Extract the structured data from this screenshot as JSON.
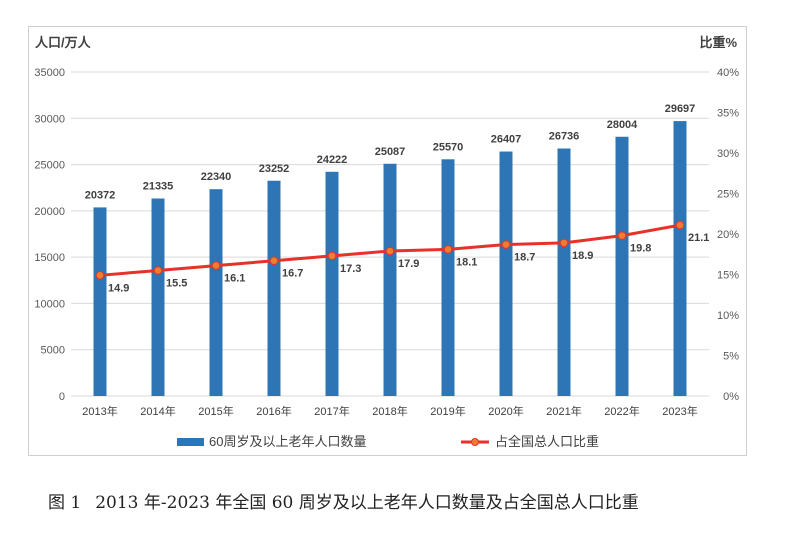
{
  "chart_data": {
    "type": "bar+line",
    "left_axis_title": "人口/万人",
    "right_axis_title": "比重%",
    "categories": [
      "2013年",
      "2014年",
      "2015年",
      "2016年",
      "2017年",
      "2018年",
      "2019年",
      "2020年",
      "2021年",
      "2022年",
      "2023年"
    ],
    "y_left": {
      "min": 0,
      "max": 35000,
      "ticks": [
        "35000",
        "30000",
        "25000",
        "20000",
        "15000",
        "10000",
        "5000",
        "0"
      ]
    },
    "y_right": {
      "min": 0,
      "max": 40,
      "ticks": [
        "40%",
        "35%",
        "30%",
        "25%",
        "20%",
        "15%",
        "10%",
        "5%",
        "0%"
      ]
    },
    "grid": true,
    "legend_position": "bottom",
    "series": [
      {
        "name": "60周岁及以上老年人口数量",
        "type": "bar",
        "axis": "left",
        "color": "#2e75b6",
        "values": [
          20372,
          21335,
          22340,
          23252,
          24222,
          25087,
          25570,
          26407,
          26736,
          28004,
          29697
        ],
        "labels": [
          "20372",
          "21335",
          "22340",
          "23252",
          "24222",
          "25087",
          "25570",
          "26407",
          "26736",
          "28004",
          "29697"
        ]
      },
      {
        "name": "占全国总人口比重",
        "type": "line",
        "axis": "right",
        "color": "#e63228",
        "marker_color": "#ed7d31",
        "values": [
          14.9,
          15.5,
          16.1,
          16.7,
          17.3,
          17.9,
          18.1,
          18.7,
          18.9,
          19.8,
          21.1
        ],
        "labels": [
          "14.9",
          "15.5",
          "16.1",
          "16.7",
          "17.3",
          "17.9",
          "18.1",
          "18.7",
          "18.9",
          "19.8",
          "21.1"
        ]
      }
    ]
  },
  "caption": {
    "figure_no": "图 1",
    "text": "2013 年-2023 年全国 60 周岁及以上老年人口数量及占全国总人口比重"
  }
}
